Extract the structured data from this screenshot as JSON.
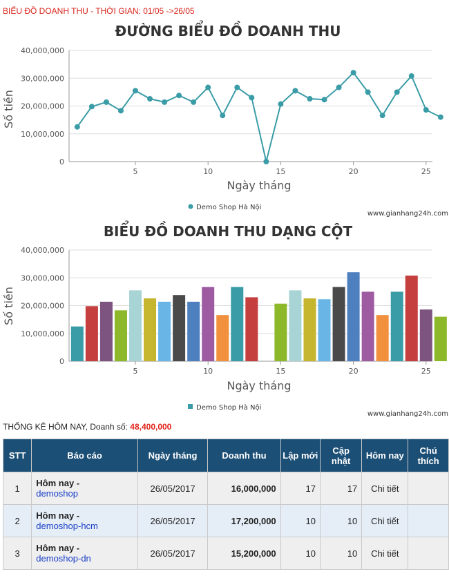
{
  "header": {
    "text": "BIỂU ĐỒ DOANH THU - THỜI GIAN: 01/05 ->26/05"
  },
  "colors": {
    "line": "#3a9ca6",
    "bars": [
      "#3a9ca6",
      "#c43f3e",
      "#7d5380",
      "#8db82a",
      "#a9d4d5",
      "#c6b52f",
      "#68b5e6",
      "#4a4a4a",
      "#4e7fbf",
      "#9f5ba2",
      "#f2913d"
    ],
    "header_red": "#d8261c",
    "table_header": "#1c4f76"
  },
  "chart_data": [
    {
      "type": "line",
      "title": "ĐƯỜNG BIỂU ĐỒ DOANH THU",
      "xlabel": "Ngày tháng",
      "ylabel": "Số tiền",
      "ylim": [
        0,
        40000000
      ],
      "yticks": [
        "0",
        "10,000,000",
        "20,000,000",
        "30,000,000",
        "40,000,000"
      ],
      "xticks": [
        "5",
        "10",
        "15",
        "20",
        "25"
      ],
      "x": [
        1,
        2,
        3,
        4,
        5,
        6,
        7,
        8,
        9,
        10,
        11,
        12,
        13,
        14,
        15,
        16,
        17,
        18,
        19,
        20,
        21,
        22,
        23,
        24,
        25,
        26
      ],
      "series": [
        {
          "name": "Demo Shop Hà Nội",
          "values": [
            12500000,
            19800000,
            21400000,
            18300000,
            25500000,
            22600000,
            21400000,
            23800000,
            21400000,
            26700000,
            16600000,
            26700000,
            23000000,
            0,
            20700000,
            25500000,
            22600000,
            22300000,
            26700000,
            32000000,
            25000000,
            16600000,
            25000000,
            30800000,
            18600000,
            16000000
          ]
        }
      ],
      "legend": "bottom-center",
      "credit": "www.gianhang24h.com"
    },
    {
      "type": "bar",
      "title": "BIỂU ĐỒ DOANH THU DẠNG CỘT",
      "xlabel": "Ngày tháng",
      "ylabel": "Số tiền",
      "ylim": [
        0,
        40000000
      ],
      "yticks": [
        "0",
        "10,000,000",
        "20,000,000",
        "30,000,000",
        "40,000,000"
      ],
      "xticks": [
        "5",
        "10",
        "15",
        "20",
        "25"
      ],
      "x": [
        1,
        2,
        3,
        4,
        5,
        6,
        7,
        8,
        9,
        10,
        11,
        12,
        13,
        14,
        15,
        16,
        17,
        18,
        19,
        20,
        21,
        22,
        23,
        24,
        25,
        26
      ],
      "series": [
        {
          "name": "Demo Shop Hà Nội",
          "values": [
            12500000,
            19800000,
            21400000,
            18300000,
            25500000,
            22600000,
            21400000,
            23800000,
            21400000,
            26700000,
            16600000,
            26700000,
            23000000,
            0,
            20700000,
            25500000,
            22600000,
            22300000,
            26700000,
            32000000,
            25000000,
            16600000,
            25000000,
            30800000,
            18600000,
            16000000
          ]
        }
      ],
      "legend": "bottom-center",
      "credit": "www.gianhang24h.com"
    }
  ],
  "summary": {
    "label": "THỐNG KÊ HÔM NAY, Doanh số:",
    "amount": "48,400,000"
  },
  "table": {
    "headers": {
      "stt": "STT",
      "report": "Báo cáo",
      "date": "Ngày tháng",
      "revenue": "Doanh thu",
      "created": "Lập mới",
      "updated": "Cập nhật",
      "today": "Hôm nay",
      "note": "Chú thích"
    },
    "rows": [
      {
        "stt": "1",
        "title": "Hôm nay -",
        "shop": "demoshop",
        "date": "26/05/2017",
        "revenue": "16,000,000",
        "created": "17",
        "updated": "17",
        "link": "Chi tiết",
        "note": ""
      },
      {
        "stt": "2",
        "title": "Hôm nay -",
        "shop": "demoshop-hcm",
        "date": "26/05/2017",
        "revenue": "17,200,000",
        "created": "10",
        "updated": "10",
        "link": "Chi tiết",
        "note": ""
      },
      {
        "stt": "3",
        "title": "Hôm nay -",
        "shop": "demoshop-dn",
        "date": "26/05/2017",
        "revenue": "15,200,000",
        "created": "10",
        "updated": "10",
        "link": "Chi tiết",
        "note": ""
      }
    ]
  }
}
